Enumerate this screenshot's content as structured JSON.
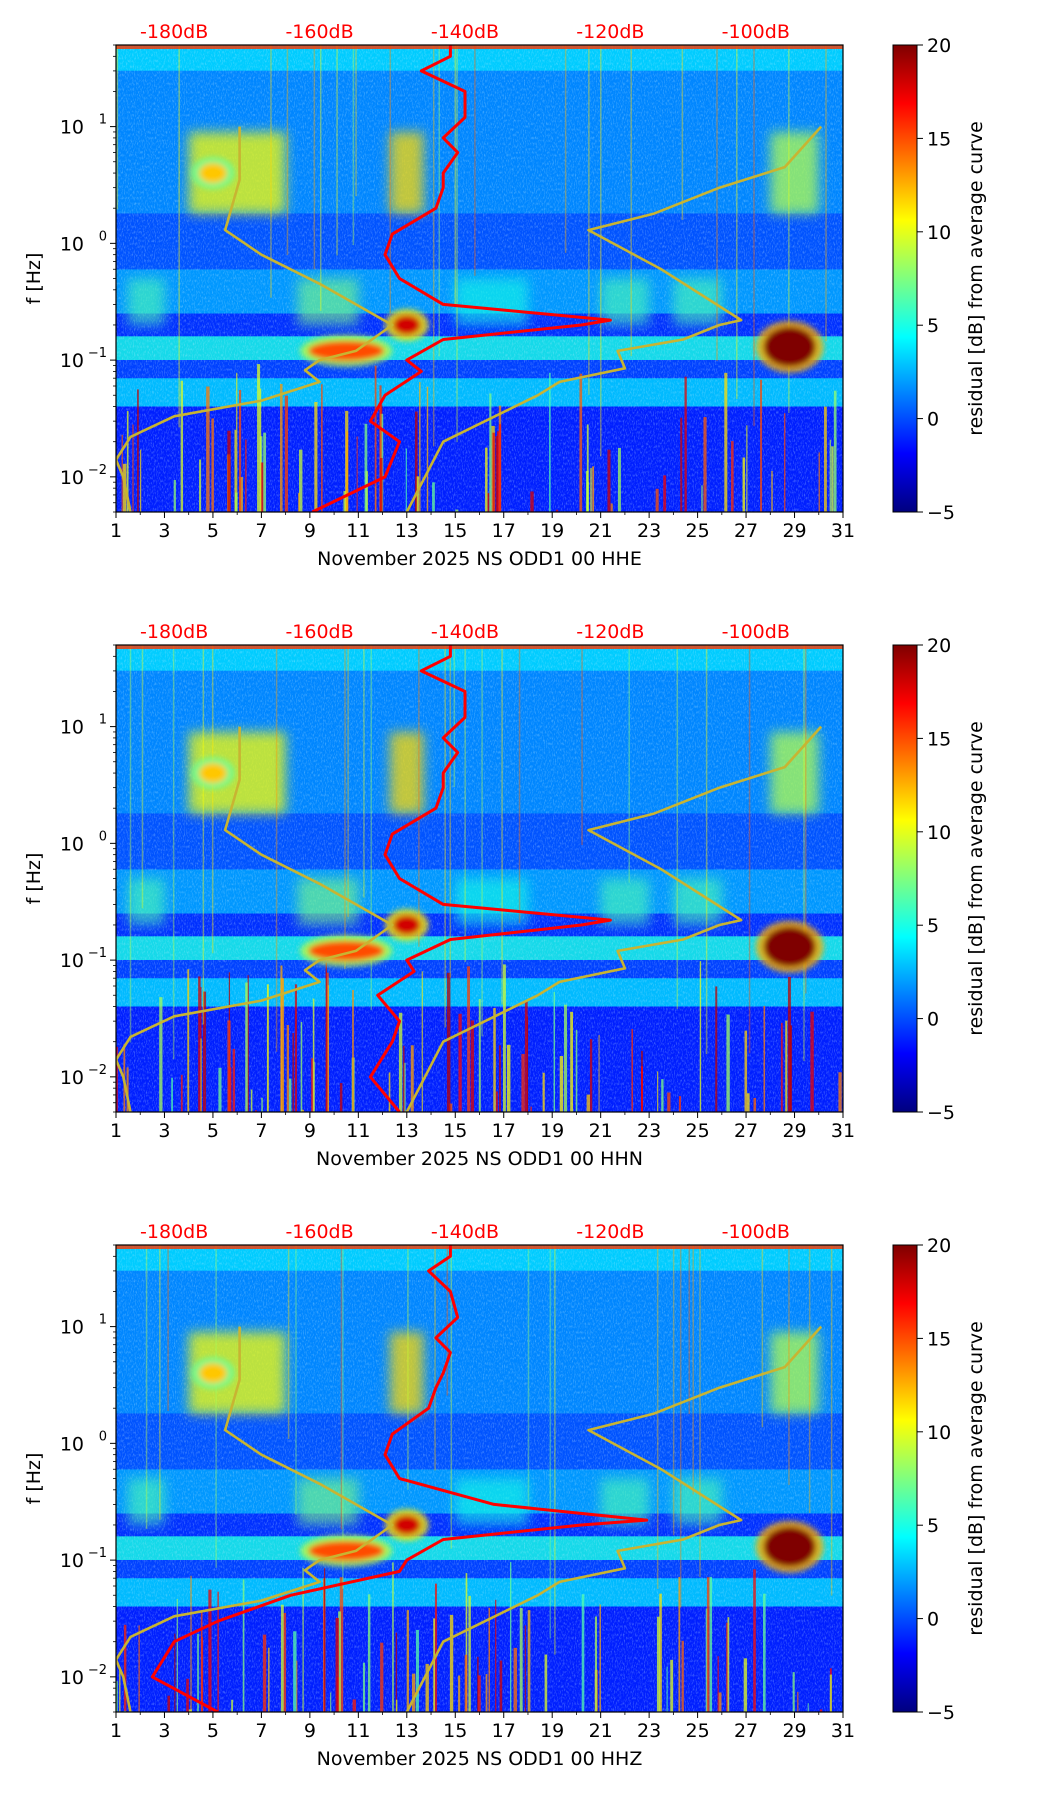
{
  "colors": {
    "jet": [
      "#00007f",
      "#0000ff",
      "#007fff",
      "#00ffff",
      "#7fff7f",
      "#ffff00",
      "#ff7f00",
      "#ff0000",
      "#7f0000"
    ],
    "noise_curve": "#ff0000",
    "model_curves": "#c8b432",
    "top_labels": "#ff0000"
  },
  "shared": {
    "y_axis_label": "f [Hz]",
    "colorbar_label": "residual [dB] from average curve",
    "colorbar_ticks": [
      "20",
      "15",
      "10",
      "5",
      "0",
      "−5"
    ],
    "y_ticks": [
      {
        "label": "10¹",
        "base": "10",
        "exp": "1"
      },
      {
        "label": "10⁰",
        "base": "10",
        "exp": "0"
      },
      {
        "label": "10⁻¹",
        "base": "10",
        "exp": "−1"
      },
      {
        "label": "10⁻²",
        "base": "10",
        "exp": "−2"
      }
    ],
    "x_ticks": [
      "1",
      "3",
      "5",
      "7",
      "9",
      "11",
      "13",
      "15",
      "17",
      "19",
      "21",
      "23",
      "25",
      "27",
      "29",
      "31"
    ],
    "top_ticks": [
      "-180dB",
      "-160dB",
      "-140dB",
      "-120dB",
      "-100dB"
    ]
  },
  "chart_data": [
    {
      "type": "heatmap",
      "title": "",
      "xlabel": "November 2025 NS ODD1 00 HHE",
      "ylabel": "f [Hz]",
      "xlim": [
        1,
        31
      ],
      "ylim_hz": [
        0.005,
        50
      ],
      "y_scale": "log",
      "colorbar": {
        "label": "residual [dB] from average curve",
        "range": [
          -5,
          20
        ]
      },
      "secondary_x": {
        "labels": [
          "-180dB",
          "-160dB",
          "-140dB",
          "-120dB",
          "-100dB"
        ],
        "range_db": [
          -188,
          -88
        ]
      },
      "series": [
        {
          "name": "noise-curve",
          "color": "red",
          "x_db": [
            -161,
            -151,
            -149,
            -153,
            -151,
            -146,
            -148,
            -143,
            -124,
            -120,
            -143,
            -149,
            -151,
            -150,
            -144,
            -143,
            -143,
            -141,
            -143,
            -140,
            -140,
            -146,
            -142,
            -142
          ],
          "f_hz": [
            0.005,
            0.01,
            0.02,
            0.03,
            0.05,
            0.08,
            0.1,
            0.15,
            0.2,
            0.22,
            0.3,
            0.5,
            0.8,
            1.2,
            2,
            3,
            4,
            6,
            8,
            12,
            20,
            30,
            40,
            50
          ]
        },
        {
          "name": "low-noise-model",
          "color": "olive",
          "x_db": [
            -186,
            -187,
            -188,
            -186,
            -180,
            -168,
            -160,
            -162,
            -160,
            -155,
            -150,
            -160,
            -168,
            -173,
            -171,
            -171
          ],
          "f_hz": [
            0.005,
            0.01,
            0.014,
            0.022,
            0.033,
            0.045,
            0.065,
            0.082,
            0.1,
            0.12,
            0.2,
            0.45,
            0.8,
            1.3,
            3.5,
            10
          ]
        },
        {
          "name": "high-noise-model",
          "color": "olive",
          "x_db": [
            -148,
            -143,
            -130,
            -127,
            -118,
            -119,
            -110,
            -105,
            -102,
            -113,
            -123,
            -114,
            -105,
            -96,
            -91
          ],
          "f_hz": [
            0.005,
            0.02,
            0.05,
            0.065,
            0.085,
            0.12,
            0.15,
            0.2,
            0.22,
            0.6,
            1.3,
            1.8,
            3,
            4.5,
            10
          ]
        }
      ],
      "hotspots": [
        {
          "day": 13,
          "f_hz": 0.2,
          "residual_db": 18
        },
        {
          "day": 28.8,
          "f_hz": 0.13,
          "residual_db": 20
        },
        {
          "day": 10.5,
          "f_hz": 0.12,
          "residual_db": 15
        },
        {
          "day": 5,
          "f_hz": 4,
          "residual_db": 12
        }
      ]
    },
    {
      "type": "heatmap",
      "title": "",
      "xlabel": "November 2025 NS ODD1 00 HHN",
      "ylabel": "f [Hz]",
      "xlim": [
        1,
        31
      ],
      "ylim_hz": [
        0.005,
        50
      ],
      "y_scale": "log",
      "colorbar": {
        "label": "residual [dB] from average curve",
        "range": [
          -5,
          20
        ]
      },
      "secondary_x": {
        "labels": [
          "-180dB",
          "-160dB",
          "-140dB",
          "-120dB",
          "-100dB"
        ],
        "range_db": [
          -188,
          -88
        ]
      },
      "series": [
        {
          "name": "noise-curve",
          "color": "red",
          "x_db": [
            -149,
            -153,
            -150,
            -149,
            -152,
            -147,
            -148,
            -142,
            -124,
            -120,
            -143,
            -149,
            -151,
            -150,
            -144,
            -143,
            -143,
            -141,
            -143,
            -140,
            -140,
            -146,
            -142,
            -142
          ],
          "f_hz": [
            0.005,
            0.01,
            0.02,
            0.03,
            0.05,
            0.08,
            0.1,
            0.15,
            0.2,
            0.22,
            0.3,
            0.5,
            0.8,
            1.2,
            2,
            3,
            4,
            6,
            8,
            12,
            20,
            30,
            40,
            50
          ]
        },
        {
          "name": "low-noise-model",
          "color": "olive",
          "x_db": [
            -186,
            -187,
            -188,
            -186,
            -180,
            -168,
            -160,
            -162,
            -160,
            -155,
            -150,
            -160,
            -168,
            -173,
            -171,
            -171
          ],
          "f_hz": [
            0.005,
            0.01,
            0.014,
            0.022,
            0.033,
            0.045,
            0.065,
            0.082,
            0.1,
            0.12,
            0.2,
            0.45,
            0.8,
            1.3,
            3.5,
            10
          ]
        },
        {
          "name": "high-noise-model",
          "color": "olive",
          "x_db": [
            -148,
            -143,
            -130,
            -127,
            -118,
            -119,
            -110,
            -105,
            -102,
            -113,
            -123,
            -114,
            -105,
            -96,
            -91
          ],
          "f_hz": [
            0.005,
            0.02,
            0.05,
            0.065,
            0.085,
            0.12,
            0.15,
            0.2,
            0.22,
            0.6,
            1.3,
            1.8,
            3,
            4.5,
            10
          ]
        }
      ],
      "hotspots": [
        {
          "day": 13,
          "f_hz": 0.2,
          "residual_db": 18
        },
        {
          "day": 28.8,
          "f_hz": 0.13,
          "residual_db": 20
        },
        {
          "day": 10.5,
          "f_hz": 0.12,
          "residual_db": 15
        },
        {
          "day": 5,
          "f_hz": 4,
          "residual_db": 12
        }
      ]
    },
    {
      "type": "heatmap",
      "title": "",
      "xlabel": "November 2025 NS ODD1 00 HHZ",
      "ylabel": "f [Hz]",
      "xlim": [
        1,
        31
      ],
      "ylim_hz": [
        0.005,
        50
      ],
      "y_scale": "log",
      "colorbar": {
        "label": "residual [dB] from average curve",
        "range": [
          -5,
          20
        ]
      },
      "secondary_x": {
        "labels": [
          "-180dB",
          "-160dB",
          "-140dB",
          "-120dB",
          "-100dB"
        ],
        "range_db": [
          -188,
          -88
        ]
      },
      "series": [
        {
          "name": "noise-curve",
          "color": "red",
          "x_db": [
            -174,
            -183,
            -180,
            -174,
            -164,
            -149,
            -148,
            -143,
            -124,
            -115,
            -136,
            -149,
            -151,
            -150,
            -145,
            -144,
            -143,
            -142,
            -144,
            -141,
            -142,
            -145,
            -142,
            -142
          ],
          "f_hz": [
            0.005,
            0.01,
            0.02,
            0.03,
            0.05,
            0.08,
            0.1,
            0.15,
            0.2,
            0.22,
            0.3,
            0.5,
            0.8,
            1.2,
            2,
            3,
            4,
            6,
            8,
            12,
            20,
            30,
            40,
            50
          ]
        },
        {
          "name": "low-noise-model",
          "color": "olive",
          "x_db": [
            -186,
            -187,
            -188,
            -186,
            -180,
            -168,
            -160,
            -162,
            -160,
            -155,
            -150,
            -160,
            -168,
            -173,
            -171,
            -171
          ],
          "f_hz": [
            0.005,
            0.01,
            0.014,
            0.022,
            0.033,
            0.045,
            0.065,
            0.082,
            0.1,
            0.12,
            0.2,
            0.45,
            0.8,
            1.3,
            3.5,
            10
          ]
        },
        {
          "name": "high-noise-model",
          "color": "olive",
          "x_db": [
            -148,
            -143,
            -130,
            -127,
            -118,
            -119,
            -110,
            -105,
            -102,
            -113,
            -123,
            -114,
            -105,
            -96,
            -91
          ],
          "f_hz": [
            0.005,
            0.02,
            0.05,
            0.065,
            0.085,
            0.12,
            0.15,
            0.2,
            0.22,
            0.6,
            1.3,
            1.8,
            3,
            4.5,
            10
          ]
        }
      ],
      "hotspots": [
        {
          "day": 13,
          "f_hz": 0.2,
          "residual_db": 18
        },
        {
          "day": 28.8,
          "f_hz": 0.13,
          "residual_db": 20
        },
        {
          "day": 10.5,
          "f_hz": 0.12,
          "residual_db": 15
        },
        {
          "day": 5,
          "f_hz": 4,
          "residual_db": 12
        }
      ]
    }
  ]
}
